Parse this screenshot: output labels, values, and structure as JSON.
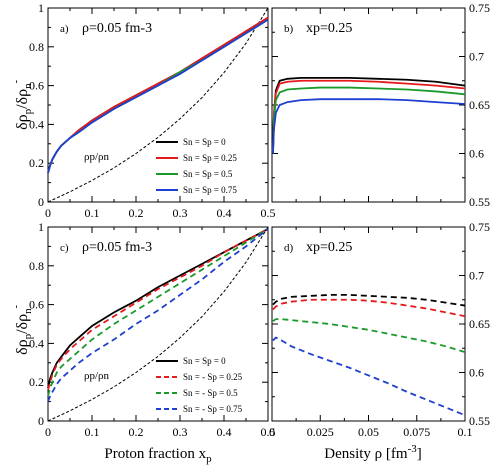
{
  "figure": {
    "ylabel_top": "δρp/δρn-",
    "ylabel_bottom": "δρp/δρn-",
    "xlabel_left": "Proton fraction xp",
    "xlabel_right": "Density ρ [fm-3]"
  },
  "chart_data": [
    {
      "id": "a",
      "type": "line",
      "panel_label": "a)",
      "title": "ρ=0.05 fm-3",
      "xlim": [
        0,
        0.5
      ],
      "ylim": [
        0,
        1
      ],
      "xticks": [
        0,
        0.1,
        0.2,
        0.3,
        0.4,
        0.5
      ],
      "xtick_labels": [
        "0",
        "0.1",
        "0.2",
        "0.3",
        "0.4",
        "0.5"
      ],
      "yticks": [
        0,
        0.2,
        0.4,
        0.6,
        0.8,
        1
      ],
      "ytick_labels": [
        "0",
        "0.2",
        "0.4",
        "0.6",
        "0.8",
        "1"
      ],
      "x": [
        0.0,
        0.005,
        0.01,
        0.02,
        0.03,
        0.05,
        0.07,
        0.1,
        0.15,
        0.2,
        0.25,
        0.3,
        0.35,
        0.4,
        0.45,
        0.5
      ],
      "series": [
        {
          "name": "Sn = Sp = 0",
          "color": "#000000",
          "dash": "solid",
          "values": [
            0.15,
            0.19,
            0.22,
            0.26,
            0.29,
            0.33,
            0.37,
            0.42,
            0.49,
            0.55,
            0.61,
            0.67,
            0.74,
            0.81,
            0.88,
            0.95
          ]
        },
        {
          "name": "Sn = Sp = 0.25",
          "color": "#e41a1c",
          "dash": "solid",
          "values": [
            0.15,
            0.19,
            0.22,
            0.26,
            0.29,
            0.33,
            0.37,
            0.42,
            0.49,
            0.55,
            0.61,
            0.67,
            0.74,
            0.81,
            0.88,
            0.95
          ]
        },
        {
          "name": "Sn = Sp = 0.5",
          "color": "#1a9a2a",
          "dash": "solid",
          "values": [
            0.15,
            0.19,
            0.22,
            0.26,
            0.29,
            0.33,
            0.36,
            0.41,
            0.48,
            0.54,
            0.6,
            0.67,
            0.73,
            0.8,
            0.87,
            0.94
          ]
        },
        {
          "name": "Sn = Sp = 0.75",
          "color": "#1f3fd0",
          "dash": "solid",
          "values": [
            0.15,
            0.19,
            0.22,
            0.26,
            0.29,
            0.33,
            0.36,
            0.41,
            0.48,
            0.54,
            0.6,
            0.66,
            0.73,
            0.8,
            0.87,
            0.94
          ]
        }
      ],
      "reference": {
        "label": "ρp/ρn",
        "color": "#000000",
        "dash": "dashed",
        "x": [
          0.0,
          0.05,
          0.1,
          0.15,
          0.2,
          0.25,
          0.3,
          0.35,
          0.4,
          0.45,
          0.5
        ],
        "values": [
          0.0,
          0.053,
          0.111,
          0.176,
          0.25,
          0.333,
          0.429,
          0.538,
          0.667,
          0.818,
          1.0
        ]
      },
      "legend": "bottom-right"
    },
    {
      "id": "b",
      "type": "line",
      "panel_label": "b)",
      "title": "xp=0.25",
      "xlim": [
        0,
        0.1
      ],
      "ylim": [
        0.55,
        0.75
      ],
      "xticks": [
        0,
        0.025,
        0.05,
        0.075,
        0.1
      ],
      "xtick_labels": [],
      "yticks": [
        0.55,
        0.6,
        0.65,
        0.7,
        0.75
      ],
      "ytick_labels": [
        "0.55",
        "0.6",
        "0.65",
        "0.7",
        "0.75"
      ],
      "x": [
        0.0005,
        0.001,
        0.002,
        0.004,
        0.008,
        0.015,
        0.025,
        0.04,
        0.055,
        0.07,
        0.085,
        0.1
      ],
      "series": [
        {
          "name": "Sn = Sp = 0",
          "color": "#000000",
          "dash": "solid",
          "values": [
            0.6,
            0.64,
            0.665,
            0.675,
            0.677,
            0.678,
            0.678,
            0.678,
            0.677,
            0.676,
            0.674,
            0.67
          ]
        },
        {
          "name": "Sn = Sp = 0.25",
          "color": "#e41a1c",
          "dash": "solid",
          "values": [
            0.6,
            0.64,
            0.662,
            0.672,
            0.674,
            0.675,
            0.675,
            0.675,
            0.674,
            0.672,
            0.67,
            0.667
          ]
        },
        {
          "name": "Sn = Sp = 0.5",
          "color": "#1a9a2a",
          "dash": "solid",
          "values": [
            0.6,
            0.635,
            0.655,
            0.663,
            0.666,
            0.667,
            0.668,
            0.668,
            0.667,
            0.666,
            0.664,
            0.661
          ]
        },
        {
          "name": "Sn = Sp = 0.75",
          "color": "#1f3fd0",
          "dash": "solid",
          "values": [
            0.6,
            0.625,
            0.642,
            0.65,
            0.653,
            0.655,
            0.656,
            0.656,
            0.656,
            0.655,
            0.653,
            0.651
          ]
        }
      ]
    },
    {
      "id": "c",
      "type": "line",
      "panel_label": "c)",
      "title": "ρ=0.05 fm-3",
      "xlim": [
        0,
        0.5
      ],
      "ylim": [
        0,
        1
      ],
      "xticks": [
        0,
        0.1,
        0.2,
        0.3,
        0.4,
        0.5
      ],
      "xtick_labels": [
        "0",
        "0.1",
        "0.2",
        "0.3",
        "0.4",
        "0.5"
      ],
      "yticks": [
        0,
        0.2,
        0.4,
        0.6,
        0.8,
        1
      ],
      "ytick_labels": [
        "0",
        "0.2",
        "0.4",
        "0.6",
        "0.8",
        "1"
      ],
      "x": [
        0.0,
        0.005,
        0.01,
        0.02,
        0.03,
        0.05,
        0.07,
        0.1,
        0.15,
        0.2,
        0.25,
        0.3,
        0.35,
        0.4,
        0.45,
        0.5
      ],
      "series": [
        {
          "name": "Sn = Sp = 0",
          "color": "#000000",
          "dash": "solid",
          "values": [
            0.17,
            0.22,
            0.25,
            0.3,
            0.33,
            0.39,
            0.43,
            0.49,
            0.56,
            0.62,
            0.69,
            0.75,
            0.81,
            0.87,
            0.93,
            0.99
          ]
        },
        {
          "name": "Sn = - Sp = 0.25",
          "color": "#e41a1c",
          "dash": "dashed",
          "values": [
            0.16,
            0.2,
            0.24,
            0.29,
            0.32,
            0.37,
            0.41,
            0.47,
            0.54,
            0.61,
            0.68,
            0.74,
            0.8,
            0.87,
            0.93,
            0.99
          ]
        },
        {
          "name": "Sn = - Sp = 0.5",
          "color": "#1a9a2a",
          "dash": "dashed",
          "values": [
            0.13,
            0.17,
            0.2,
            0.25,
            0.28,
            0.32,
            0.36,
            0.42,
            0.5,
            0.57,
            0.64,
            0.71,
            0.78,
            0.85,
            0.92,
            0.99
          ]
        },
        {
          "name": "Sn = - Sp = 0.75",
          "color": "#1f3fd0",
          "dash": "dashed",
          "values": [
            0.1,
            0.13,
            0.15,
            0.19,
            0.22,
            0.26,
            0.3,
            0.35,
            0.42,
            0.5,
            0.57,
            0.65,
            0.73,
            0.82,
            0.9,
            0.99
          ]
        }
      ],
      "reference": {
        "label": "ρp/ρn",
        "color": "#000000",
        "dash": "dashed",
        "x": [
          0.0,
          0.05,
          0.1,
          0.15,
          0.2,
          0.25,
          0.3,
          0.35,
          0.4,
          0.45,
          0.5
        ],
        "values": [
          0.0,
          0.053,
          0.111,
          0.176,
          0.25,
          0.333,
          0.429,
          0.538,
          0.667,
          0.818,
          1.0
        ]
      },
      "legend": "bottom-right"
    },
    {
      "id": "d",
      "type": "line",
      "panel_label": "d)",
      "title": "xp=0.25",
      "xlim": [
        0,
        0.1
      ],
      "ylim": [
        0.55,
        0.75
      ],
      "xticks": [
        0,
        0.025,
        0.05,
        0.075,
        0.1
      ],
      "xtick_labels": [
        "0",
        "0.025",
        "0.05",
        "0.075",
        "0.1"
      ],
      "yticks": [
        0.55,
        0.6,
        0.65,
        0.7,
        0.75
      ],
      "ytick_labels": [
        "0.55",
        "0.6",
        "0.65",
        "0.7",
        "0.75"
      ],
      "x": [
        0.0005,
        0.002,
        0.005,
        0.01,
        0.02,
        0.03,
        0.04,
        0.05,
        0.06,
        0.07,
        0.08,
        0.09,
        0.1
      ],
      "series": [
        {
          "name": "Sn = Sp = 0",
          "color": "#000000",
          "dash": "dashed",
          "values": [
            0.67,
            0.673,
            0.676,
            0.678,
            0.679,
            0.68,
            0.68,
            0.679,
            0.678,
            0.677,
            0.675,
            0.672,
            0.669
          ]
        },
        {
          "name": "Sn = - Sp = 0.25",
          "color": "#e41a1c",
          "dash": "dashed",
          "values": [
            0.665,
            0.668,
            0.671,
            0.673,
            0.675,
            0.675,
            0.675,
            0.674,
            0.672,
            0.669,
            0.666,
            0.662,
            0.658
          ]
        },
        {
          "name": "Sn = - Sp = 0.5",
          "color": "#1a9a2a",
          "dash": "dashed",
          "values": [
            0.653,
            0.655,
            0.655,
            0.654,
            0.652,
            0.65,
            0.647,
            0.644,
            0.64,
            0.636,
            0.632,
            0.627,
            0.621
          ]
        },
        {
          "name": "Sn = - Sp = 0.75",
          "color": "#1f3fd0",
          "dash": "dashed",
          "values": [
            0.633,
            0.636,
            0.633,
            0.627,
            0.619,
            0.612,
            0.605,
            0.597,
            0.589,
            0.58,
            0.572,
            0.564,
            0.556
          ]
        }
      ]
    }
  ]
}
